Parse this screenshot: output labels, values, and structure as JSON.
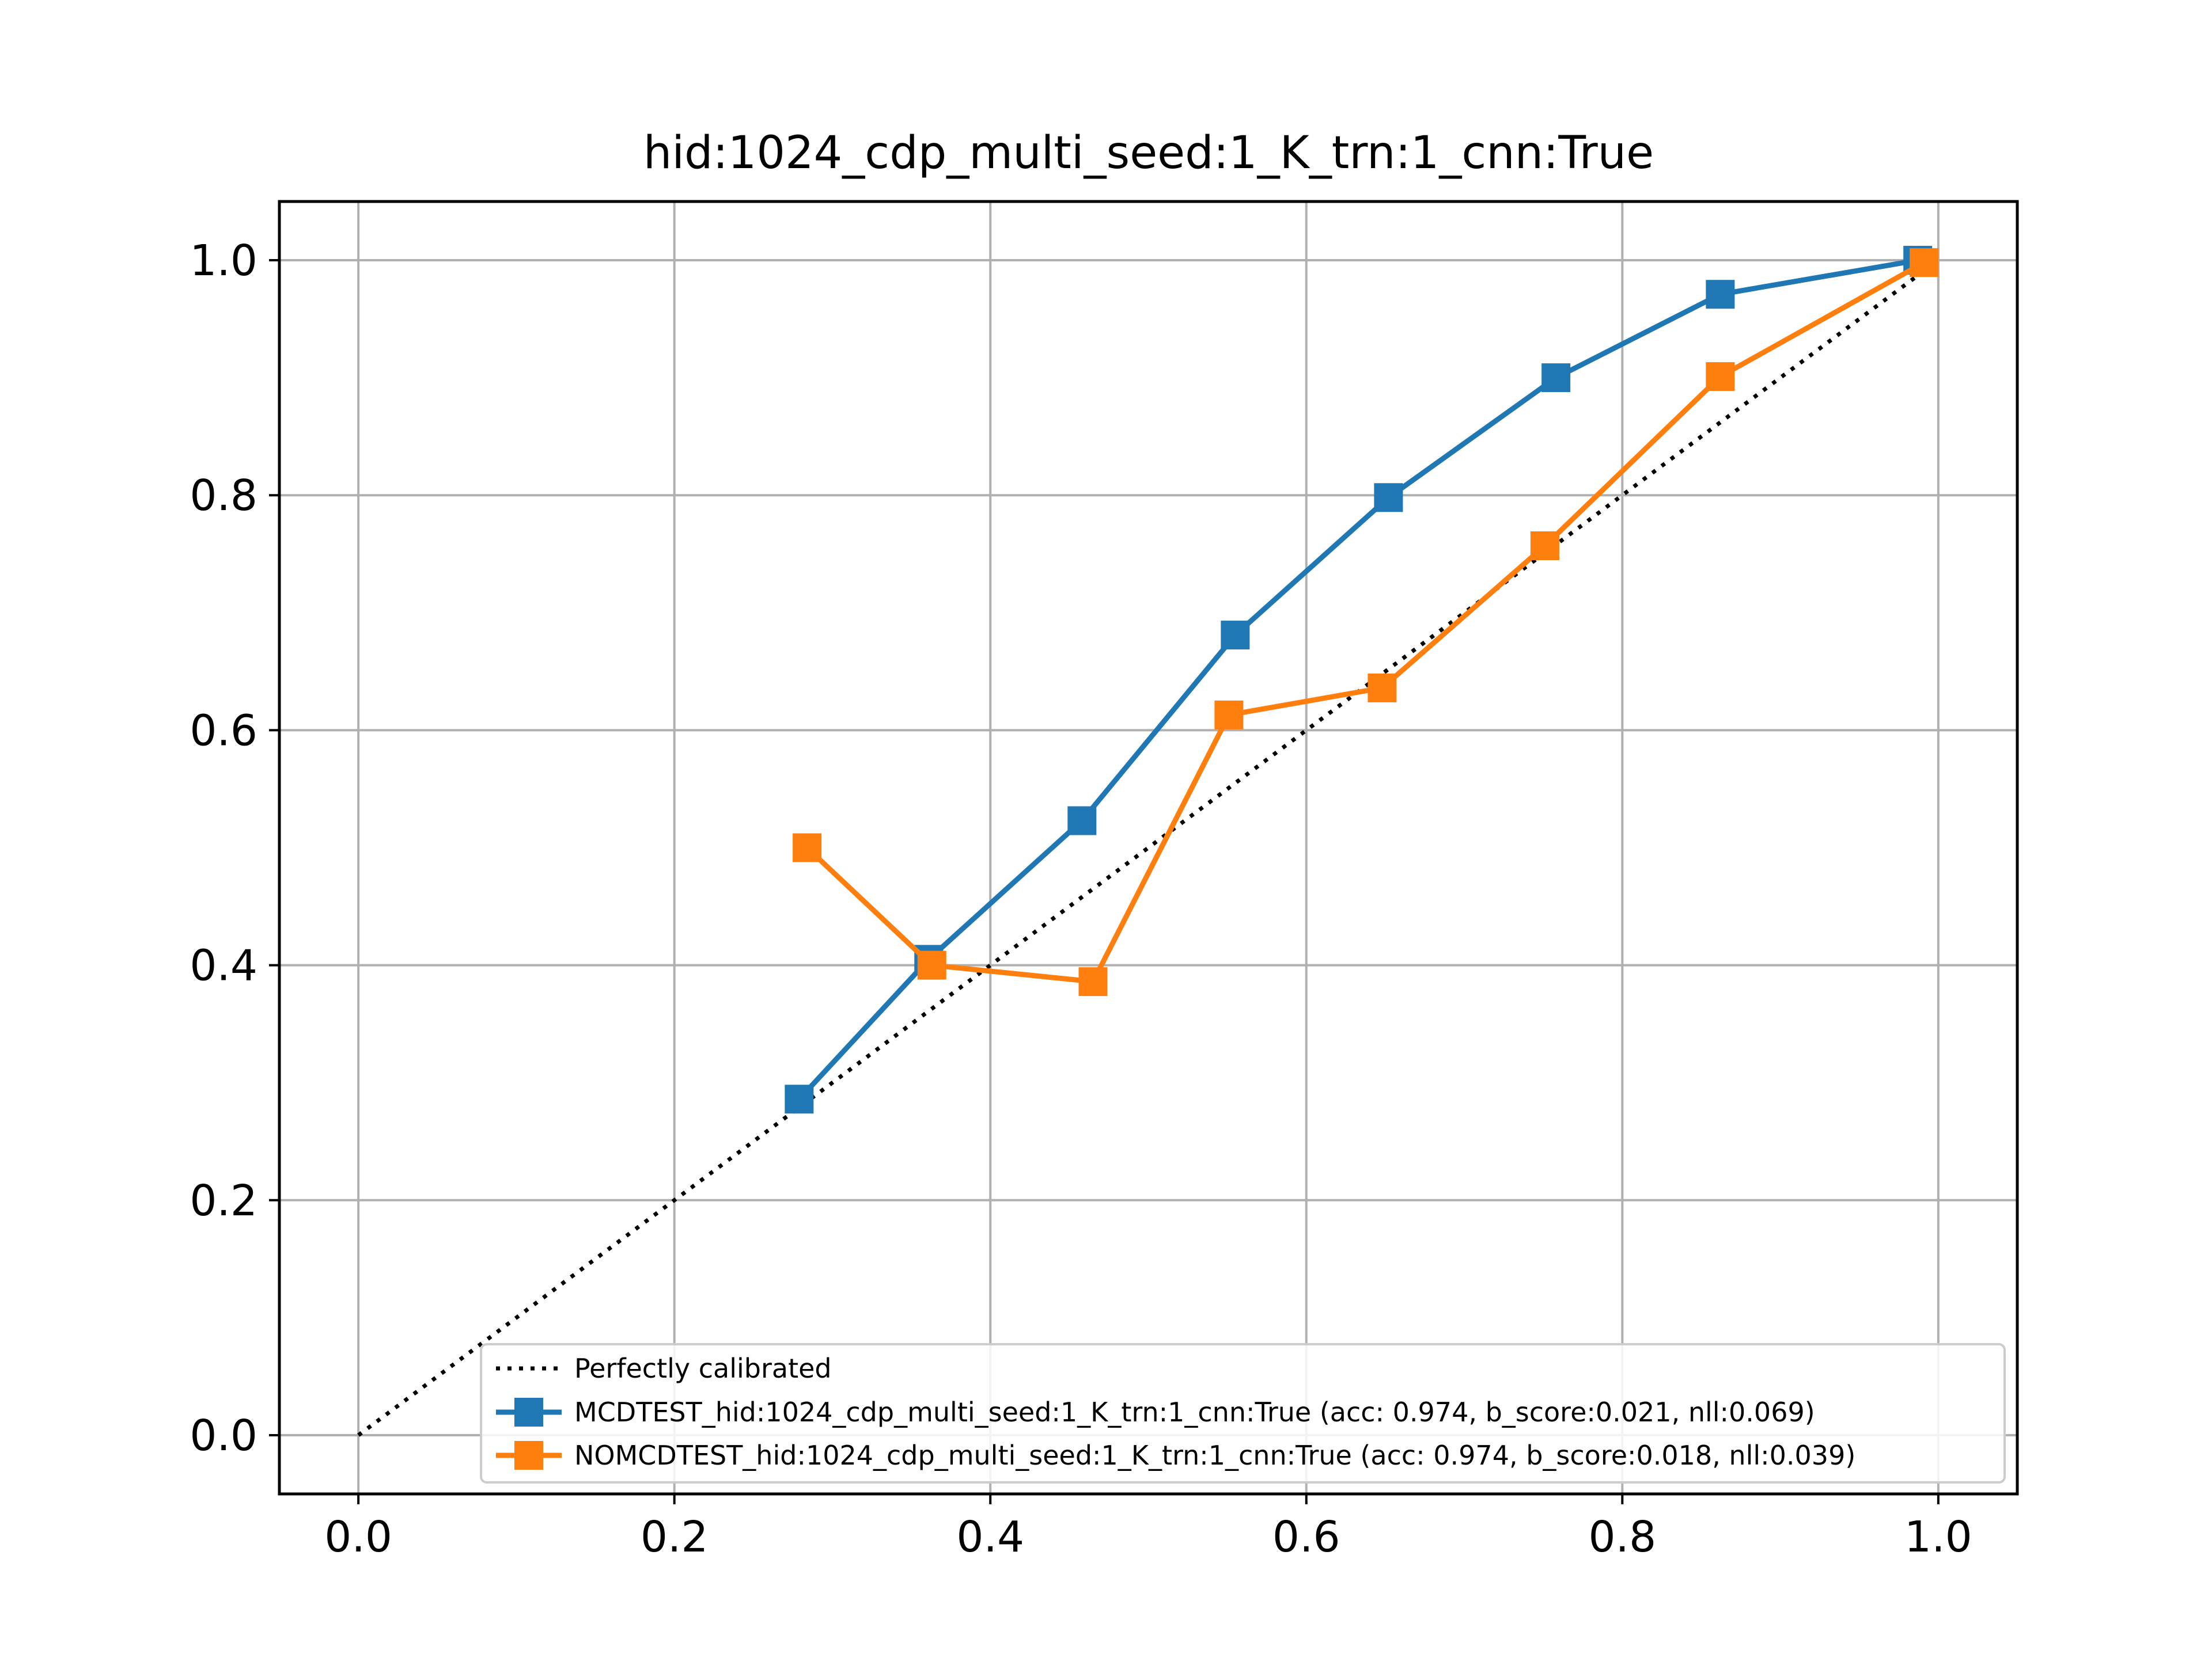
{
  "chart_data": {
    "type": "line",
    "title": "hid:1024_cdp_multi_seed:1_K_trn:1_cnn:True",
    "xlabel": "",
    "ylabel": "",
    "xlim": [
      -0.05,
      1.05
    ],
    "ylim": [
      -0.05,
      1.05
    ],
    "xticks": [
      "0.0",
      "0.2",
      "0.4",
      "0.6",
      "0.8",
      "1.0"
    ],
    "yticks": [
      "0.0",
      "0.2",
      "0.4",
      "0.6",
      "0.8",
      "1.0"
    ],
    "grid": true,
    "legend_position": "lower-right",
    "reference_line": {
      "name": "Perfectly calibrated",
      "x": [
        0,
        1
      ],
      "y": [
        0,
        1
      ],
      "color": "#000000",
      "style": "dotted"
    },
    "series": [
      {
        "name": "MCDTEST_hid:1024_cdp_multi_seed:1_K_trn:1_cnn:True (acc: 0.974, b_score:0.021, nll:0.069)",
        "color": "#1f77b4",
        "marker": "square",
        "x": [
          0.279,
          0.361,
          0.458,
          0.555,
          0.652,
          0.758,
          0.862,
          0.987
        ],
        "y": [
          0.286,
          0.405,
          0.523,
          0.681,
          0.798,
          0.9,
          0.971,
          1.0
        ]
      },
      {
        "name": "NOMCDTEST_hid:1024_cdp_multi_seed:1_K_trn:1_cnn:True (acc: 0.974, b_score:0.018, nll:0.039)",
        "color": "#ff7f0e",
        "marker": "square",
        "x": [
          0.284,
          0.363,
          0.465,
          0.551,
          0.648,
          0.751,
          0.862,
          0.991
        ],
        "y": [
          0.5,
          0.4,
          0.386,
          0.613,
          0.636,
          0.757,
          0.901,
          0.998
        ]
      }
    ]
  }
}
